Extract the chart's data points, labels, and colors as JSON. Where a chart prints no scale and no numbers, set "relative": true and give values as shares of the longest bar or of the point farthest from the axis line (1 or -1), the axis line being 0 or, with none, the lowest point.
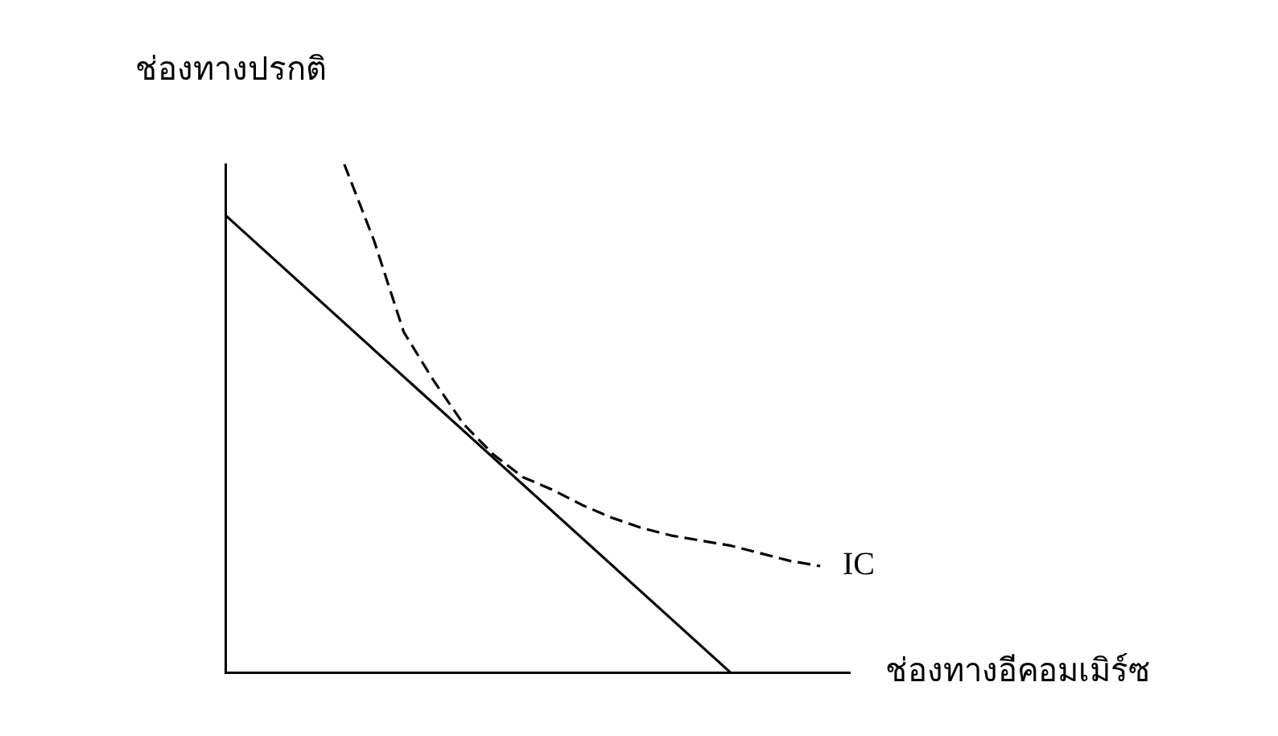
{
  "chart_data": {
    "type": "line",
    "relative": true,
    "xlabel": "ช่องทางอีคอมเมิร์ซ",
    "ylabel": "ช่องทางปรกติ",
    "grid": false,
    "legend": false,
    "marker": "none",
    "categories": [
      null,
      null,
      null,
      null,
      null,
      null,
      null,
      null,
      null,
      null,
      null,
      null,
      null,
      null,
      null,
      null,
      null,
      null,
      null,
      null,
      null,
      null
    ],
    "series": [
      {
        "color": "#000000",
        "line_style": "solid",
        "values": [
          0.9,
          null,
          null,
          null,
          null,
          null,
          null,
          null,
          null,
          null,
          null,
          null,
          null,
          null,
          null,
          null,
          null,
          0,
          null,
          null,
          null,
          null
        ]
      },
      {
        "name": "IC",
        "color": "#000000",
        "line_style": "dashed",
        "values": [
          null,
          null,
          null,
          null,
          1.0,
          0.85,
          0.67,
          0.575,
          0.49,
          0.43,
          0.385,
          0.36,
          0.33,
          0.305,
          0.285,
          0.27,
          0.26,
          0.25,
          0.235,
          0.22,
          0.21,
          null
        ]
      }
    ]
  }
}
